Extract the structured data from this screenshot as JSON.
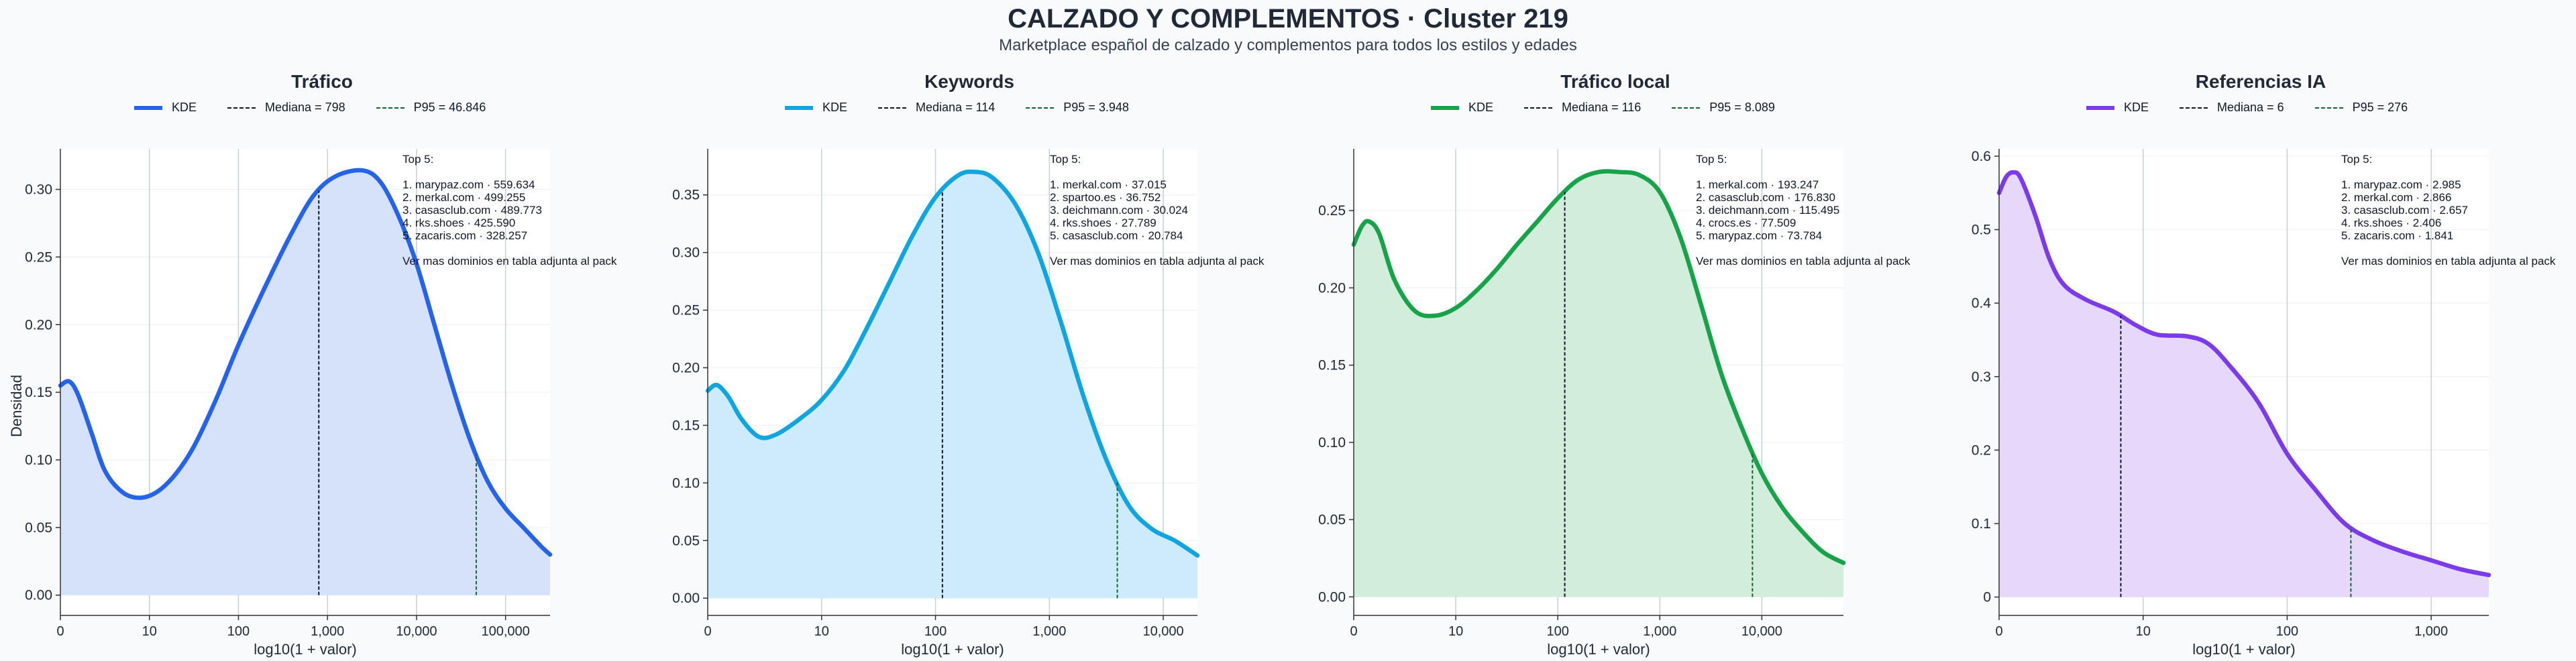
{
  "title": "CALZADO Y COMPLEMENTOS · Cluster 219",
  "subtitle": "Marketplace español de calzado y complementos para todos los estilos y edades",
  "shared": {
    "ylabel": "Densidad",
    "xlabel": "log10(1 + valor)",
    "legend_kde": "KDE",
    "top_header": "Top 5:",
    "more_note": "Ver mas dominios en tabla adjunta al pack",
    "median_color": "#111827",
    "p95_color": "#166534"
  },
  "chart_data": [
    {
      "type": "area",
      "title": "Tráfico",
      "xlabel": "log10(1 + valor)",
      "ylabel": "Densidad",
      "color": "#2563eb",
      "fill": "#d6e1fa",
      "x_scale": "log10(1+value)",
      "xlim": [
        0,
        5.5
      ],
      "ylim": [
        -0.015,
        0.33
      ],
      "x_ticks": [
        0,
        1,
        2,
        3,
        4,
        5
      ],
      "x_tick_labels": [
        "0",
        "10",
        "100",
        "1,000",
        "10,000",
        "100,000"
      ],
      "y_ticks": [
        0,
        0.05,
        0.1,
        0.15,
        0.2,
        0.25,
        0.3
      ],
      "y_tick_labels": [
        "0.00",
        "0.05",
        "0.10",
        "0.15",
        "0.20",
        "0.25",
        "0.30"
      ],
      "median_label": "Mediana = 798",
      "median_value": 798,
      "p95_label": "P95 = 46.846",
      "p95_value": 46846,
      "kde": [
        [
          0,
          0.155
        ],
        [
          0.1,
          0.158
        ],
        [
          0.2,
          0.148
        ],
        [
          0.35,
          0.12
        ],
        [
          0.5,
          0.092
        ],
        [
          0.7,
          0.076
        ],
        [
          0.9,
          0.072
        ],
        [
          1.1,
          0.077
        ],
        [
          1.3,
          0.09
        ],
        [
          1.5,
          0.11
        ],
        [
          1.75,
          0.145
        ],
        [
          2,
          0.185
        ],
        [
          2.3,
          0.228
        ],
        [
          2.6,
          0.268
        ],
        [
          2.85,
          0.296
        ],
        [
          3.1,
          0.31
        ],
        [
          3.4,
          0.314
        ],
        [
          3.6,
          0.305
        ],
        [
          3.8,
          0.28
        ],
        [
          4,
          0.245
        ],
        [
          4.2,
          0.2
        ],
        [
          4.4,
          0.155
        ],
        [
          4.6,
          0.115
        ],
        [
          4.8,
          0.084
        ],
        [
          5,
          0.064
        ],
        [
          5.2,
          0.05
        ],
        [
          5.4,
          0.036
        ],
        [
          5.5,
          0.03
        ]
      ],
      "top5": [
        "1. marypaz.com · 559.634",
        "2. merkal.com · 499.255",
        "3. casasclub.com · 489.773",
        "4. rks.shoes · 425.590",
        "5. zacaris.com · 328.257"
      ]
    },
    {
      "type": "area",
      "title": "Keywords",
      "xlabel": "log10(1 + valor)",
      "color": "#0ea5e0",
      "fill": "#cdebfa",
      "x_scale": "log10(1+value)",
      "xlim": [
        0,
        4.3
      ],
      "ylim": [
        -0.015,
        0.39
      ],
      "x_ticks": [
        0,
        1,
        2,
        3,
        4
      ],
      "x_tick_labels": [
        "0",
        "10",
        "100",
        "1,000",
        "10,000"
      ],
      "y_ticks": [
        0,
        0.05,
        0.1,
        0.15,
        0.2,
        0.25,
        0.3,
        0.35
      ],
      "y_tick_labels": [
        "0.00",
        "0.05",
        "0.10",
        "0.15",
        "0.20",
        "0.25",
        "0.30",
        "0.35"
      ],
      "median_label": "Mediana = 114",
      "median_value": 114,
      "p95_label": "P95 = 3.948",
      "p95_value": 3948,
      "kde": [
        [
          0,
          0.18
        ],
        [
          0.08,
          0.185
        ],
        [
          0.18,
          0.175
        ],
        [
          0.3,
          0.155
        ],
        [
          0.45,
          0.14
        ],
        [
          0.6,
          0.142
        ],
        [
          0.8,
          0.155
        ],
        [
          1,
          0.172
        ],
        [
          1.2,
          0.198
        ],
        [
          1.4,
          0.235
        ],
        [
          1.6,
          0.275
        ],
        [
          1.8,
          0.315
        ],
        [
          2,
          0.348
        ],
        [
          2.2,
          0.367
        ],
        [
          2.35,
          0.37
        ],
        [
          2.5,
          0.365
        ],
        [
          2.7,
          0.342
        ],
        [
          2.9,
          0.3
        ],
        [
          3.1,
          0.24
        ],
        [
          3.3,
          0.175
        ],
        [
          3.5,
          0.12
        ],
        [
          3.7,
          0.08
        ],
        [
          3.9,
          0.06
        ],
        [
          4.1,
          0.05
        ],
        [
          4.3,
          0.037
        ]
      ],
      "top5": [
        "1. merkal.com · 37.015",
        "2. spartoo.es · 36.752",
        "3. deichmann.com · 30.024",
        "4. rks.shoes · 27.789",
        "5. casasclub.com · 20.784"
      ]
    },
    {
      "type": "area",
      "title": "Tráfico local",
      "xlabel": "log10(1 + valor)",
      "color": "#16a34a",
      "fill": "#d2eedb",
      "x_scale": "log10(1+value)",
      "xlim": [
        0,
        4.8
      ],
      "ylim": [
        -0.012,
        0.29
      ],
      "x_ticks": [
        0,
        1,
        2,
        3,
        4
      ],
      "x_tick_labels": [
        "0",
        "10",
        "100",
        "1,000",
        "10,000"
      ],
      "y_ticks": [
        0,
        0.05,
        0.1,
        0.15,
        0.2,
        0.25
      ],
      "y_tick_labels": [
        "0.00",
        "0.05",
        "0.10",
        "0.15",
        "0.20",
        "0.25"
      ],
      "median_label": "Mediana = 116",
      "median_value": 116,
      "p95_label": "P95 = 8.089",
      "p95_value": 8089,
      "kde": [
        [
          0,
          0.228
        ],
        [
          0.08,
          0.24
        ],
        [
          0.15,
          0.243
        ],
        [
          0.25,
          0.235
        ],
        [
          0.4,
          0.205
        ],
        [
          0.6,
          0.185
        ],
        [
          0.8,
          0.182
        ],
        [
          1,
          0.187
        ],
        [
          1.2,
          0.198
        ],
        [
          1.4,
          0.212
        ],
        [
          1.6,
          0.228
        ],
        [
          1.8,
          0.243
        ],
        [
          2,
          0.258
        ],
        [
          2.2,
          0.27
        ],
        [
          2.4,
          0.275
        ],
        [
          2.6,
          0.275
        ],
        [
          2.8,
          0.273
        ],
        [
          3,
          0.262
        ],
        [
          3.2,
          0.233
        ],
        [
          3.4,
          0.19
        ],
        [
          3.6,
          0.145
        ],
        [
          3.8,
          0.11
        ],
        [
          4,
          0.08
        ],
        [
          4.2,
          0.058
        ],
        [
          4.4,
          0.042
        ],
        [
          4.6,
          0.029
        ],
        [
          4.8,
          0.022
        ]
      ],
      "top5": [
        "1. merkal.com · 193.247",
        "2. casasclub.com · 176.830",
        "3. deichmann.com · 115.495",
        "4. crocs.es · 77.509",
        "5. marypaz.com · 73.784"
      ]
    },
    {
      "type": "area",
      "title": "Referencias IA",
      "xlabel": "log10(1 + valor)",
      "color": "#7c3aed",
      "fill": "#e5d8fa",
      "x_scale": "log10(1+value)",
      "xlim": [
        0,
        3.4
      ],
      "ylim": [
        -0.025,
        0.61
      ],
      "x_ticks": [
        0,
        1,
        2,
        3
      ],
      "x_tick_labels": [
        "0",
        "10",
        "100",
        "1,000"
      ],
      "y_ticks": [
        0,
        0.1,
        0.2,
        0.3,
        0.4,
        0.5,
        0.6
      ],
      "y_tick_labels": [
        "0",
        "0.1",
        "0.2",
        "0.3",
        "0.4",
        "0.5",
        "0.6"
      ],
      "median_label": "Mediana = 6",
      "median_value": 6,
      "p95_label": "P95 = 276",
      "p95_value": 276,
      "kde": [
        [
          0,
          0.55
        ],
        [
          0.05,
          0.572
        ],
        [
          0.1,
          0.578
        ],
        [
          0.15,
          0.57
        ],
        [
          0.25,
          0.52
        ],
        [
          0.35,
          0.46
        ],
        [
          0.45,
          0.425
        ],
        [
          0.6,
          0.405
        ],
        [
          0.8,
          0.388
        ],
        [
          0.95,
          0.37
        ],
        [
          1.1,
          0.357
        ],
        [
          1.3,
          0.355
        ],
        [
          1.45,
          0.345
        ],
        [
          1.6,
          0.315
        ],
        [
          1.8,
          0.265
        ],
        [
          2,
          0.195
        ],
        [
          2.2,
          0.145
        ],
        [
          2.4,
          0.1
        ],
        [
          2.6,
          0.077
        ],
        [
          2.8,
          0.062
        ],
        [
          3,
          0.05
        ],
        [
          3.2,
          0.038
        ],
        [
          3.4,
          0.03
        ]
      ],
      "top5": [
        "1. marypaz.com · 2.985",
        "2. merkal.com · 2.866",
        "3. casasclub.com · 2.657",
        "4. rks.shoes · 2.406",
        "5. zacaris.com · 1.841"
      ]
    }
  ]
}
